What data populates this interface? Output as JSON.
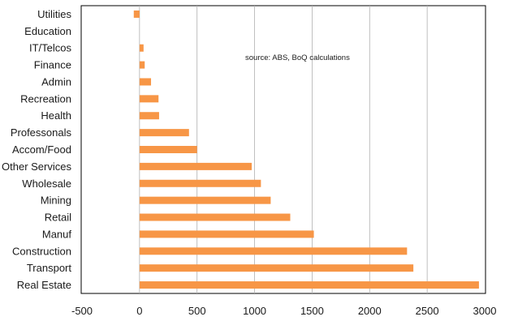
{
  "chart_data": {
    "type": "bar",
    "orientation": "horizontal",
    "categories": [
      "Utilities",
      "Education",
      "IT/Telcos",
      "Finance",
      "Admin",
      "Recreation",
      "Health",
      "Professonals",
      "Accom/Food",
      "Other Services",
      "Wholesale",
      "Mining",
      "Retail",
      "Manuf",
      "Construction",
      "Transport",
      "Real Estate"
    ],
    "values": [
      -50,
      0,
      35,
      45,
      100,
      165,
      170,
      430,
      500,
      975,
      1055,
      1140,
      1310,
      1515,
      2325,
      2380,
      2950
    ],
    "xlim": [
      -500,
      3000
    ],
    "xticks": [
      -500,
      0,
      500,
      1000,
      1500,
      2000,
      2500,
      3000
    ],
    "xtick_labels": [
      "-500",
      "0",
      "500",
      "1000",
      "1500",
      "2000",
      "2500",
      "3000"
    ],
    "grid": "vertical",
    "bar_color": "#f79646",
    "grid_color": "#b0b0b0",
    "annotation": "source:  ABS, BoQ calculations"
  }
}
